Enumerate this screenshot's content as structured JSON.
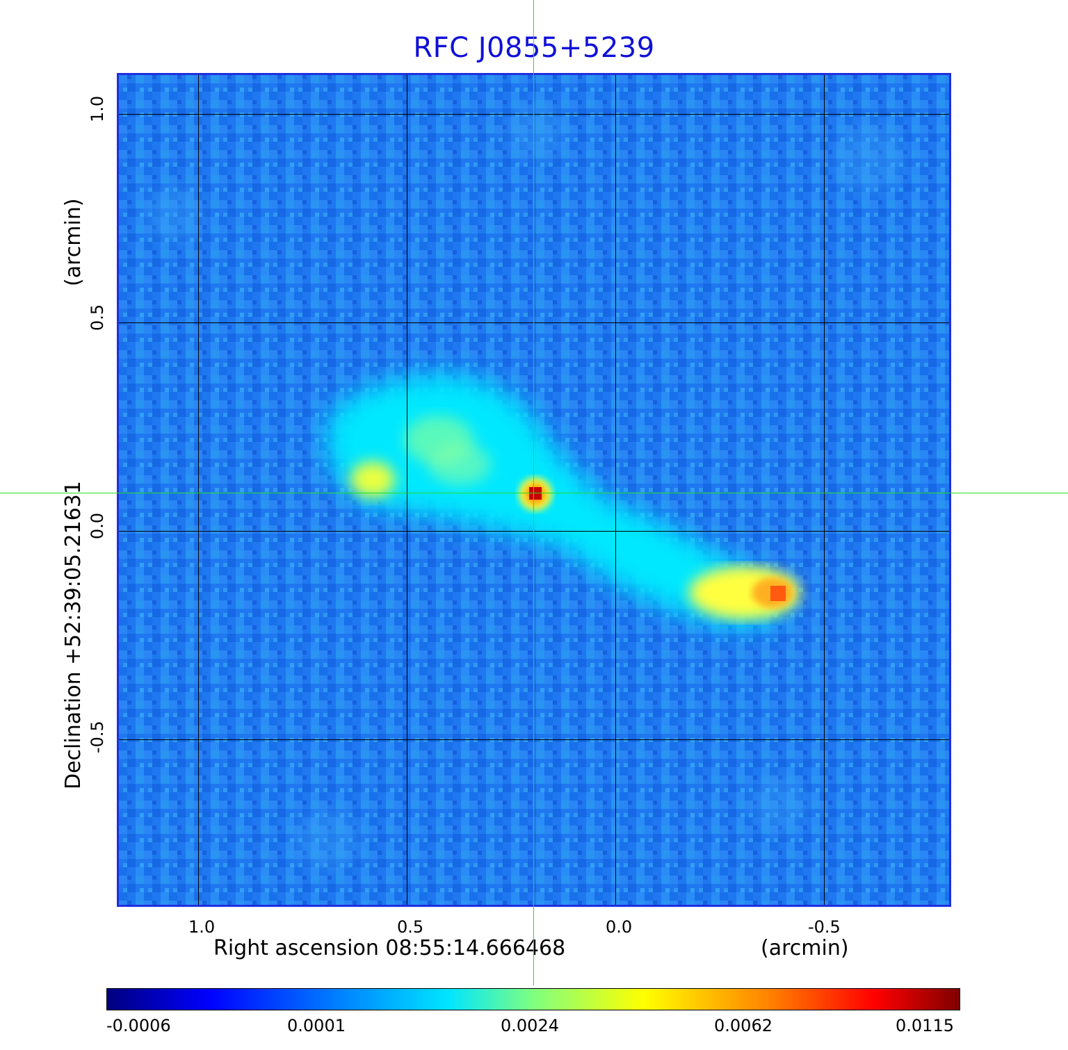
{
  "title": "RFC J0855+5239",
  "x_axis": {
    "label": "Right ascension  08:55:14.666468",
    "unit": "(arcmin)",
    "ticks": [
      "1.0",
      "0.5",
      "0.0",
      "-0.5"
    ]
  },
  "y_axis": {
    "label": "Declination  +52:39:05.21631",
    "unit": "(arcmin)",
    "ticks": [
      "1.0",
      "0.5",
      "0.0",
      "-0.5"
    ]
  },
  "colorbar": {
    "ticks": [
      "-0.0006",
      "0.0001",
      "0.0024",
      "0.0062",
      "0.0115"
    ]
  },
  "colors": {
    "title": "#1010d8",
    "frame": "#1f2fe0",
    "crosshair": "#22e022",
    "background_noise": "#1f78f0"
  }
}
